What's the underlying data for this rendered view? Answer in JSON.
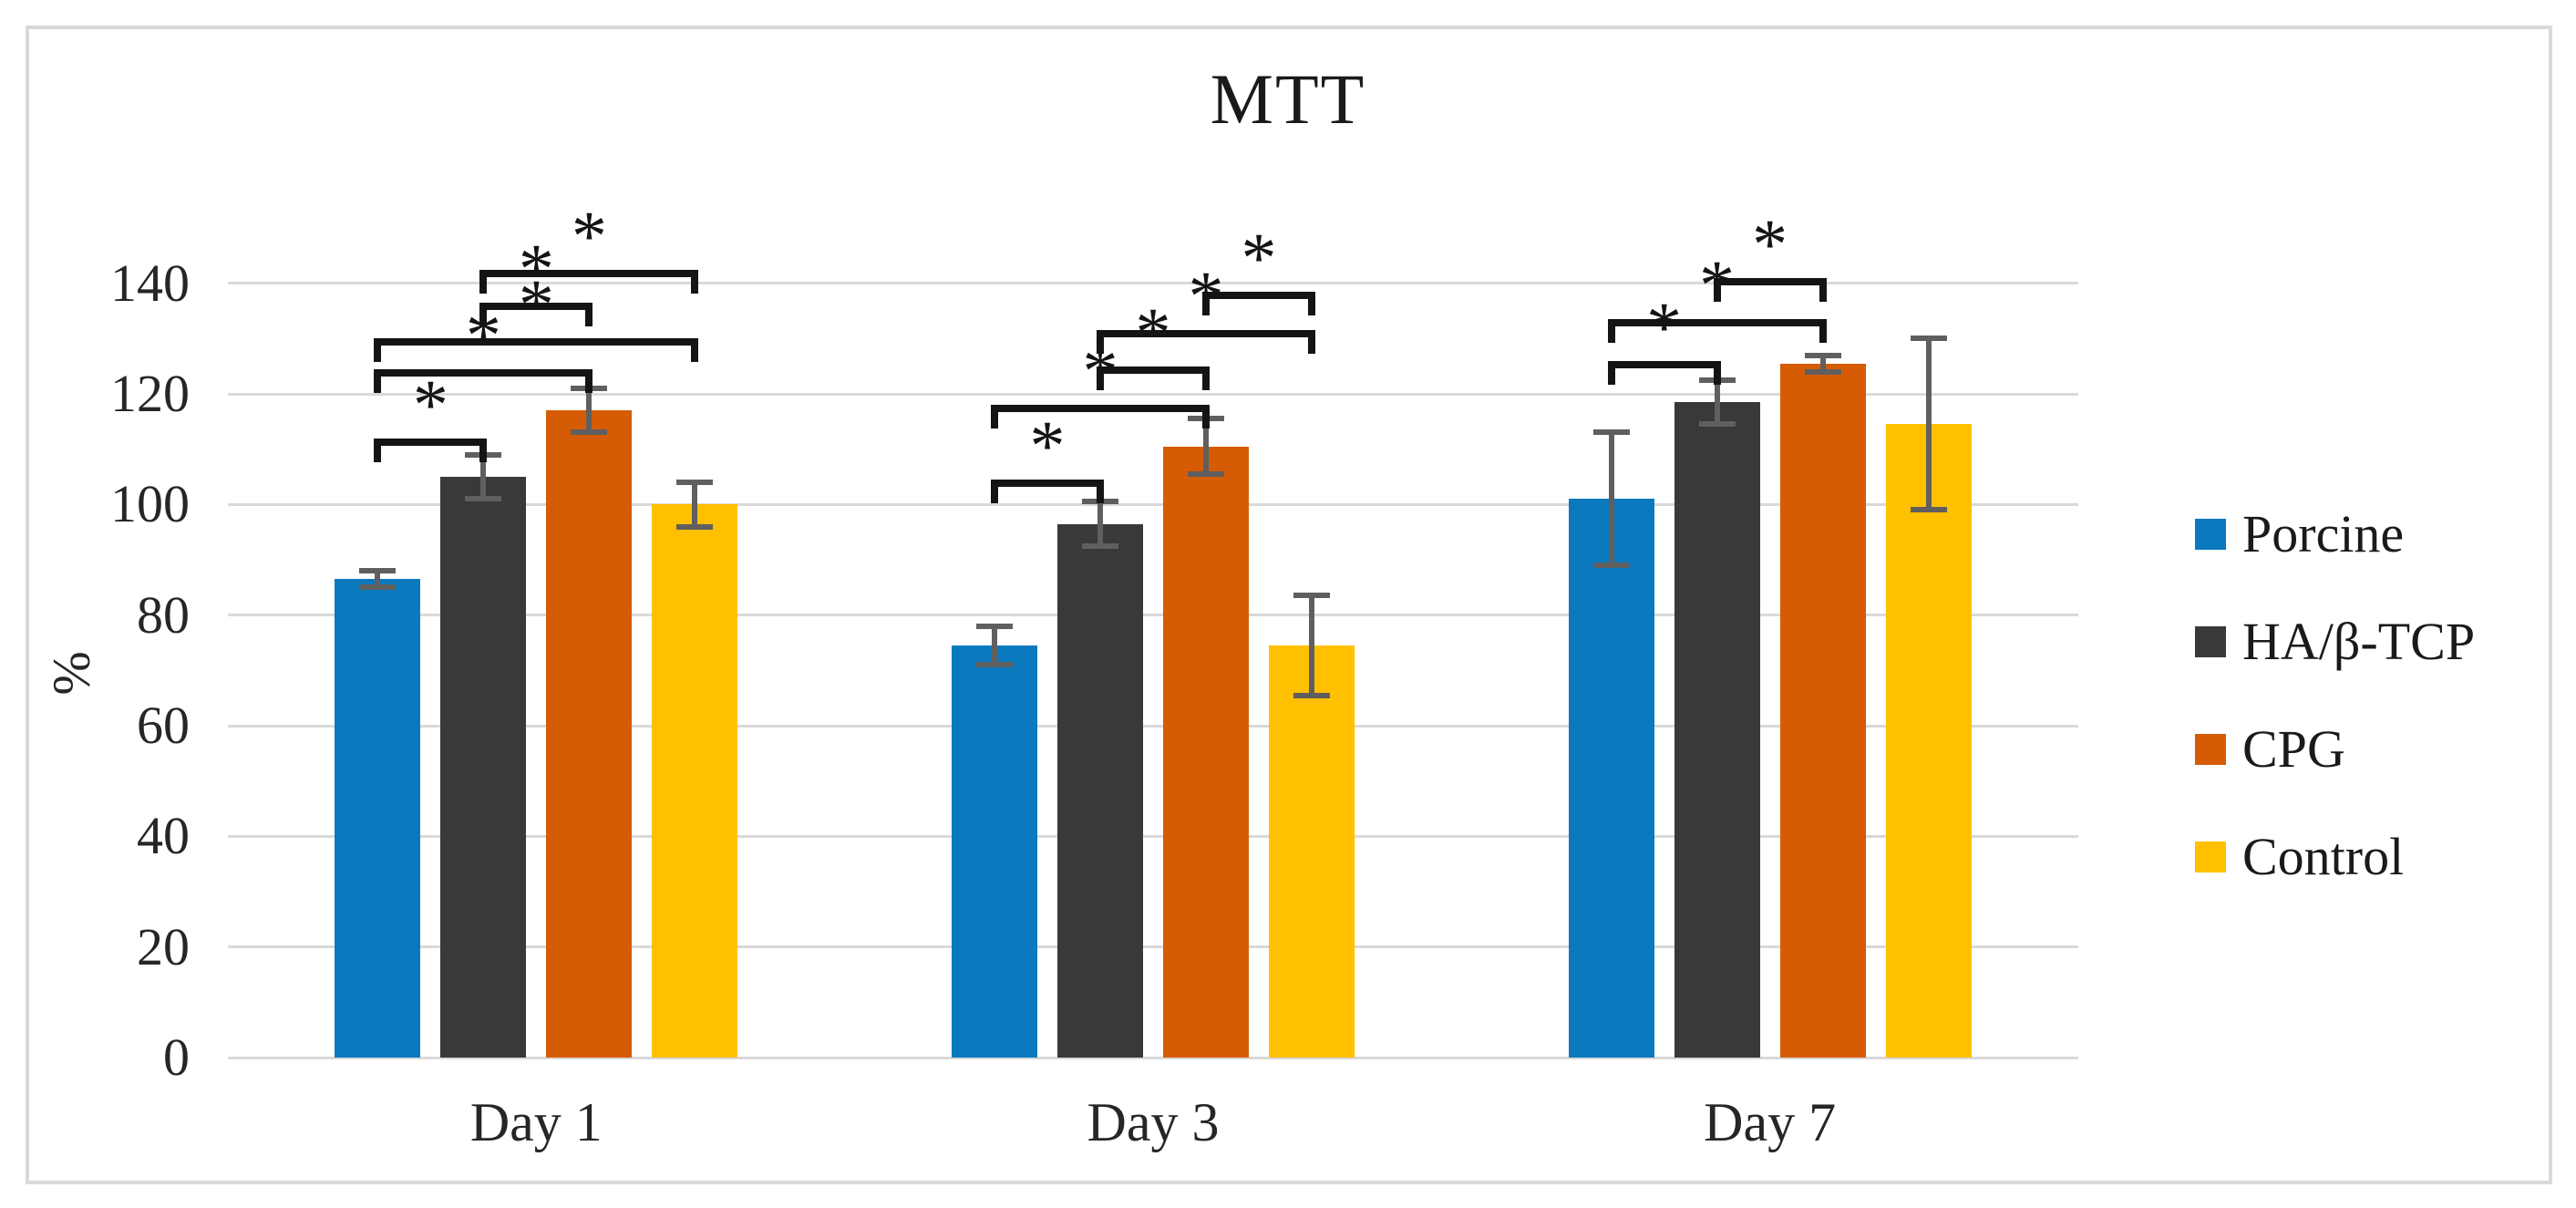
{
  "figure": {
    "kind": "journal-figure-screenshot"
  },
  "chart_data": {
    "type": "bar",
    "title": "MTT",
    "xlabel": "",
    "ylabel": "%",
    "categories": [
      "Day 1",
      "Day 3",
      "Day 7"
    ],
    "yticks": [
      0,
      20,
      40,
      60,
      80,
      100,
      120,
      140
    ],
    "ylim": [
      0,
      150
    ],
    "grid": true,
    "legend_position": "right",
    "series": [
      {
        "name": "Porcine",
        "color": "#0B79BE",
        "values": [
          86.5,
          74.5,
          101.0
        ],
        "errors": [
          1.5,
          3.5,
          12.0
        ]
      },
      {
        "name": "HA/β-TCP",
        "color": "#3B3838",
        "values": [
          105.0,
          96.5,
          118.5
        ],
        "errors": [
          4.0,
          4.0,
          4.0
        ]
      },
      {
        "name": "CPG",
        "color": "#D55C04",
        "values": [
          117.0,
          110.5,
          125.5
        ],
        "errors": [
          4.0,
          5.0,
          1.5
        ]
      },
      {
        "name": "Control",
        "color": "#FFC000",
        "values": [
          100.0,
          74.5,
          114.5
        ],
        "errors": [
          4.0,
          9.0,
          15.5
        ]
      }
    ],
    "significance_brackets": [
      {
        "category": 0,
        "from": 0,
        "to": 1,
        "height_pct": 112.0,
        "label": "*"
      },
      {
        "category": 0,
        "from": 0,
        "to": 2,
        "height_pct": 124.5,
        "label": "*"
      },
      {
        "category": 0,
        "from": 0,
        "to": 3,
        "height_pct": 130.0,
        "label": "*"
      },
      {
        "category": 0,
        "from": 1,
        "to": 2,
        "height_pct": 136.5,
        "label": "*"
      },
      {
        "category": 0,
        "from": 1,
        "to": 3,
        "height_pct": 142.5,
        "label": "*"
      },
      {
        "category": 1,
        "from": 0,
        "to": 1,
        "height_pct": 104.5,
        "label": "*"
      },
      {
        "category": 1,
        "from": 0,
        "to": 2,
        "height_pct": 118.0,
        "label": "*"
      },
      {
        "category": 1,
        "from": 1,
        "to": 2,
        "height_pct": 125.0,
        "label": "*"
      },
      {
        "category": 1,
        "from": 1,
        "to": 3,
        "height_pct": 131.5,
        "label": "*"
      },
      {
        "category": 1,
        "from": 2,
        "to": 3,
        "height_pct": 138.5,
        "label": "*"
      },
      {
        "category": 2,
        "from": 0,
        "to": 1,
        "height_pct": 126.0,
        "label": "*"
      },
      {
        "category": 2,
        "from": 0,
        "to": 2,
        "height_pct": 133.5,
        "label": "*"
      },
      {
        "category": 2,
        "from": 1,
        "to": 2,
        "height_pct": 141.0,
        "label": "*"
      }
    ],
    "colors": {
      "gridline": "#D9D9D9",
      "axis_line": "#D9D9D9",
      "error_bar": "#5F5F5F",
      "bracket": "#141414",
      "text": "#262626",
      "frame_border": "#D9D9D9",
      "background": "#FFFFFF"
    }
  }
}
